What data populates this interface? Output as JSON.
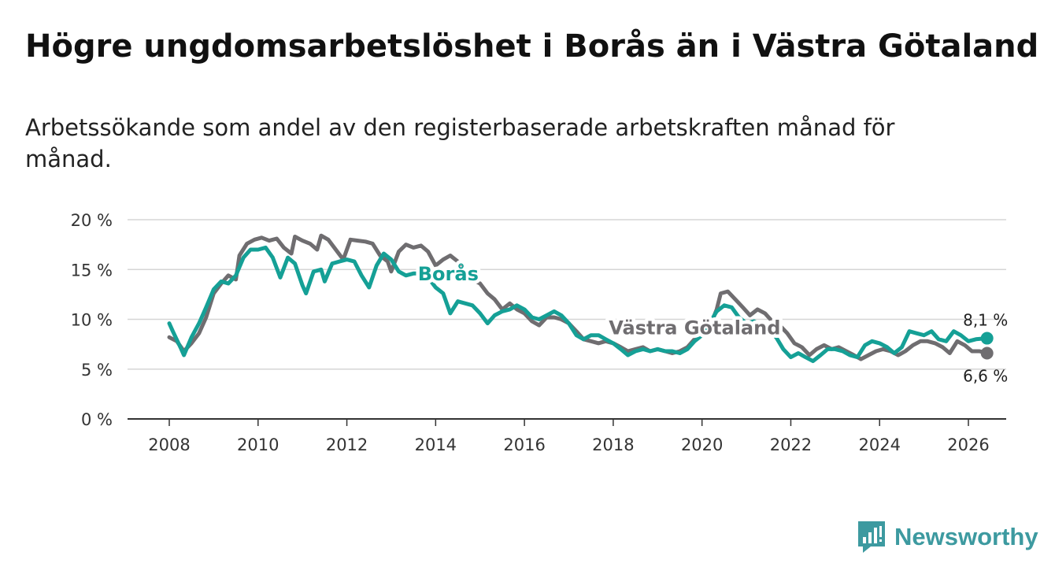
{
  "title": "Högre ungdomsarbetslöshet i Borås än i Västra Götaland",
  "subtitle": "Arbetssökande som andel av den registerbaserade arbetskraften månad för månad.",
  "brand": {
    "name": "Newsworthy",
    "icon": "newsworthy-logo-icon",
    "color": "#3d9aa0"
  },
  "chart_data": {
    "type": "line",
    "ylim": [
      0,
      20
    ],
    "yticks": [
      0,
      5,
      10,
      15,
      20
    ],
    "ytick_labels": [
      "0 %",
      "5 %",
      "10 %",
      "15 %",
      "20 %"
    ],
    "xlim": [
      2007.5,
      2027.0
    ],
    "xticks": [
      2008,
      2010,
      2012,
      2014,
      2016,
      2018,
      2020,
      2022,
      2024,
      2026
    ],
    "xtick_labels": [
      "2008",
      "2010",
      "2012",
      "2014",
      "2016",
      "2018",
      "2020",
      "2022",
      "2024",
      "2026"
    ],
    "grid": true,
    "series": [
      {
        "name": "Västra Götaland",
        "color": "#6f6d70",
        "end_label": "6,6 %",
        "points": [
          [
            2008.0,
            8.2
          ],
          [
            2008.17,
            7.8
          ],
          [
            2008.33,
            6.8
          ],
          [
            2008.5,
            7.6
          ],
          [
            2008.67,
            8.6
          ],
          [
            2008.83,
            10.2
          ],
          [
            2009.0,
            12.6
          ],
          [
            2009.17,
            13.6
          ],
          [
            2009.33,
            14.4
          ],
          [
            2009.5,
            14.0
          ],
          [
            2009.58,
            16.4
          ],
          [
            2009.75,
            17.6
          ],
          [
            2009.92,
            18.0
          ],
          [
            2010.08,
            18.2
          ],
          [
            2010.25,
            17.9
          ],
          [
            2010.42,
            18.1
          ],
          [
            2010.58,
            17.2
          ],
          [
            2010.75,
            16.6
          ],
          [
            2010.83,
            18.3
          ],
          [
            2011.0,
            17.9
          ],
          [
            2011.17,
            17.6
          ],
          [
            2011.33,
            17.0
          ],
          [
            2011.42,
            18.4
          ],
          [
            2011.58,
            18.0
          ],
          [
            2011.75,
            17.0
          ],
          [
            2011.92,
            16.0
          ],
          [
            2012.08,
            18.0
          ],
          [
            2012.25,
            17.9
          ],
          [
            2012.42,
            17.8
          ],
          [
            2012.58,
            17.6
          ],
          [
            2012.75,
            16.4
          ],
          [
            2012.92,
            15.8
          ],
          [
            2013.0,
            14.8
          ],
          [
            2013.17,
            16.8
          ],
          [
            2013.33,
            17.5
          ],
          [
            2013.5,
            17.2
          ],
          [
            2013.67,
            17.4
          ],
          [
            2013.83,
            16.8
          ],
          [
            2014.0,
            15.4
          ],
          [
            2014.17,
            16.0
          ],
          [
            2014.33,
            16.4
          ],
          [
            2014.5,
            15.8
          ],
          [
            2014.67,
            15.0
          ],
          [
            2014.83,
            14.0
          ],
          [
            2015.0,
            13.6
          ],
          [
            2015.17,
            12.6
          ],
          [
            2015.33,
            12.0
          ],
          [
            2015.5,
            11.0
          ],
          [
            2015.67,
            11.6
          ],
          [
            2015.83,
            11.0
          ],
          [
            2016.0,
            10.6
          ],
          [
            2016.17,
            9.8
          ],
          [
            2016.33,
            9.4
          ],
          [
            2016.5,
            10.2
          ],
          [
            2016.67,
            10.2
          ],
          [
            2016.83,
            10.0
          ],
          [
            2017.0,
            9.6
          ],
          [
            2017.17,
            8.8
          ],
          [
            2017.33,
            8.0
          ],
          [
            2017.5,
            7.8
          ],
          [
            2017.67,
            7.6
          ],
          [
            2017.83,
            7.8
          ],
          [
            2018.0,
            7.6
          ],
          [
            2018.17,
            7.2
          ],
          [
            2018.33,
            6.8
          ],
          [
            2018.5,
            7.0
          ],
          [
            2018.67,
            7.2
          ],
          [
            2018.83,
            6.8
          ],
          [
            2019.0,
            7.0
          ],
          [
            2019.17,
            6.8
          ],
          [
            2019.33,
            6.6
          ],
          [
            2019.5,
            6.8
          ],
          [
            2019.67,
            7.2
          ],
          [
            2019.83,
            8.0
          ],
          [
            2020.0,
            8.4
          ],
          [
            2020.17,
            9.2
          ],
          [
            2020.33,
            11.0
          ],
          [
            2020.42,
            12.6
          ],
          [
            2020.58,
            12.8
          ],
          [
            2020.75,
            12.0
          ],
          [
            2020.92,
            11.2
          ],
          [
            2021.08,
            10.4
          ],
          [
            2021.25,
            11.0
          ],
          [
            2021.42,
            10.6
          ],
          [
            2021.58,
            9.8
          ],
          [
            2021.75,
            9.4
          ],
          [
            2021.92,
            8.6
          ],
          [
            2022.08,
            7.6
          ],
          [
            2022.25,
            7.2
          ],
          [
            2022.42,
            6.4
          ],
          [
            2022.58,
            7.0
          ],
          [
            2022.75,
            7.4
          ],
          [
            2022.92,
            7.0
          ],
          [
            2023.08,
            7.2
          ],
          [
            2023.25,
            6.8
          ],
          [
            2023.42,
            6.4
          ],
          [
            2023.58,
            6.0
          ],
          [
            2023.75,
            6.4
          ],
          [
            2023.92,
            6.8
          ],
          [
            2024.08,
            7.0
          ],
          [
            2024.25,
            6.8
          ],
          [
            2024.42,
            6.4
          ],
          [
            2024.58,
            6.8
          ],
          [
            2024.75,
            7.4
          ],
          [
            2024.92,
            7.8
          ],
          [
            2025.08,
            7.8
          ],
          [
            2025.25,
            7.6
          ],
          [
            2025.42,
            7.2
          ],
          [
            2025.58,
            6.6
          ],
          [
            2025.75,
            7.8
          ],
          [
            2025.92,
            7.4
          ],
          [
            2026.08,
            6.8
          ],
          [
            2026.25,
            6.8
          ],
          [
            2026.42,
            6.6
          ]
        ]
      },
      {
        "name": "Borås",
        "color": "#15a096",
        "end_label": "8,1 %",
        "points": [
          [
            2008.0,
            9.6
          ],
          [
            2008.08,
            8.8
          ],
          [
            2008.25,
            7.2
          ],
          [
            2008.33,
            6.4
          ],
          [
            2008.5,
            8.2
          ],
          [
            2008.67,
            9.6
          ],
          [
            2008.83,
            11.2
          ],
          [
            2009.0,
            13.0
          ],
          [
            2009.17,
            13.8
          ],
          [
            2009.33,
            13.6
          ],
          [
            2009.5,
            14.4
          ],
          [
            2009.67,
            16.2
          ],
          [
            2009.83,
            17.0
          ],
          [
            2010.0,
            17.0
          ],
          [
            2010.17,
            17.2
          ],
          [
            2010.33,
            16.2
          ],
          [
            2010.5,
            14.2
          ],
          [
            2010.67,
            16.2
          ],
          [
            2010.83,
            15.6
          ],
          [
            2011.0,
            13.4
          ],
          [
            2011.08,
            12.6
          ],
          [
            2011.25,
            14.8
          ],
          [
            2011.42,
            15.0
          ],
          [
            2011.5,
            13.8
          ],
          [
            2011.67,
            15.6
          ],
          [
            2011.83,
            15.8
          ],
          [
            2012.0,
            16.0
          ],
          [
            2012.17,
            15.8
          ],
          [
            2012.33,
            14.4
          ],
          [
            2012.5,
            13.2
          ],
          [
            2012.67,
            15.4
          ],
          [
            2012.83,
            16.6
          ],
          [
            2013.0,
            16.0
          ],
          [
            2013.17,
            14.8
          ],
          [
            2013.33,
            14.4
          ],
          [
            2013.5,
            14.6
          ],
          [
            2013.67,
            14.6
          ],
          [
            2013.83,
            14.2
          ],
          [
            2014.0,
            13.2
          ],
          [
            2014.17,
            12.6
          ],
          [
            2014.33,
            10.6
          ],
          [
            2014.5,
            11.8
          ],
          [
            2014.67,
            11.6
          ],
          [
            2014.83,
            11.4
          ],
          [
            2015.0,
            10.6
          ],
          [
            2015.17,
            9.6
          ],
          [
            2015.33,
            10.4
          ],
          [
            2015.5,
            10.8
          ],
          [
            2015.67,
            11.0
          ],
          [
            2015.83,
            11.4
          ],
          [
            2016.0,
            11.0
          ],
          [
            2016.17,
            10.2
          ],
          [
            2016.33,
            10.0
          ],
          [
            2016.5,
            10.4
          ],
          [
            2016.67,
            10.8
          ],
          [
            2016.83,
            10.4
          ],
          [
            2017.0,
            9.6
          ],
          [
            2017.17,
            8.4
          ],
          [
            2017.33,
            8.0
          ],
          [
            2017.5,
            8.4
          ],
          [
            2017.67,
            8.4
          ],
          [
            2017.83,
            8.0
          ],
          [
            2018.0,
            7.6
          ],
          [
            2018.17,
            7.0
          ],
          [
            2018.33,
            6.4
          ],
          [
            2018.5,
            6.8
          ],
          [
            2018.67,
            7.0
          ],
          [
            2018.83,
            6.8
          ],
          [
            2019.0,
            7.0
          ],
          [
            2019.17,
            6.8
          ],
          [
            2019.33,
            6.8
          ],
          [
            2019.5,
            6.6
          ],
          [
            2019.67,
            7.0
          ],
          [
            2019.83,
            7.8
          ],
          [
            2020.0,
            8.4
          ],
          [
            2020.17,
            9.6
          ],
          [
            2020.33,
            10.8
          ],
          [
            2020.5,
            11.4
          ],
          [
            2020.67,
            11.2
          ],
          [
            2020.83,
            10.2
          ],
          [
            2021.0,
            9.6
          ],
          [
            2021.17,
            9.8
          ],
          [
            2021.33,
            9.4
          ],
          [
            2021.5,
            8.8
          ],
          [
            2021.67,
            8.2
          ],
          [
            2021.83,
            7.0
          ],
          [
            2022.0,
            6.2
          ],
          [
            2022.17,
            6.6
          ],
          [
            2022.33,
            6.2
          ],
          [
            2022.5,
            5.8
          ],
          [
            2022.67,
            6.4
          ],
          [
            2022.83,
            7.0
          ],
          [
            2023.0,
            7.0
          ],
          [
            2023.17,
            6.8
          ],
          [
            2023.33,
            6.4
          ],
          [
            2023.5,
            6.2
          ],
          [
            2023.67,
            7.4
          ],
          [
            2023.83,
            7.8
          ],
          [
            2024.0,
            7.6
          ],
          [
            2024.17,
            7.2
          ],
          [
            2024.33,
            6.6
          ],
          [
            2024.5,
            7.2
          ],
          [
            2024.67,
            8.8
          ],
          [
            2024.83,
            8.6
          ],
          [
            2025.0,
            8.4
          ],
          [
            2025.17,
            8.8
          ],
          [
            2025.33,
            8.0
          ],
          [
            2025.5,
            7.8
          ],
          [
            2025.67,
            8.8
          ],
          [
            2025.83,
            8.4
          ],
          [
            2026.0,
            7.8
          ],
          [
            2026.17,
            8.0
          ],
          [
            2026.42,
            8.1
          ]
        ]
      }
    ],
    "annotations": [
      {
        "series": "Borås",
        "text": "Borås",
        "x": 2013.6,
        "y": 13.9,
        "anchor": "start"
      },
      {
        "series": "Västra Götaland",
        "text": "Västra Götaland",
        "x": 2017.9,
        "y": 8.5,
        "anchor": "start"
      }
    ]
  }
}
